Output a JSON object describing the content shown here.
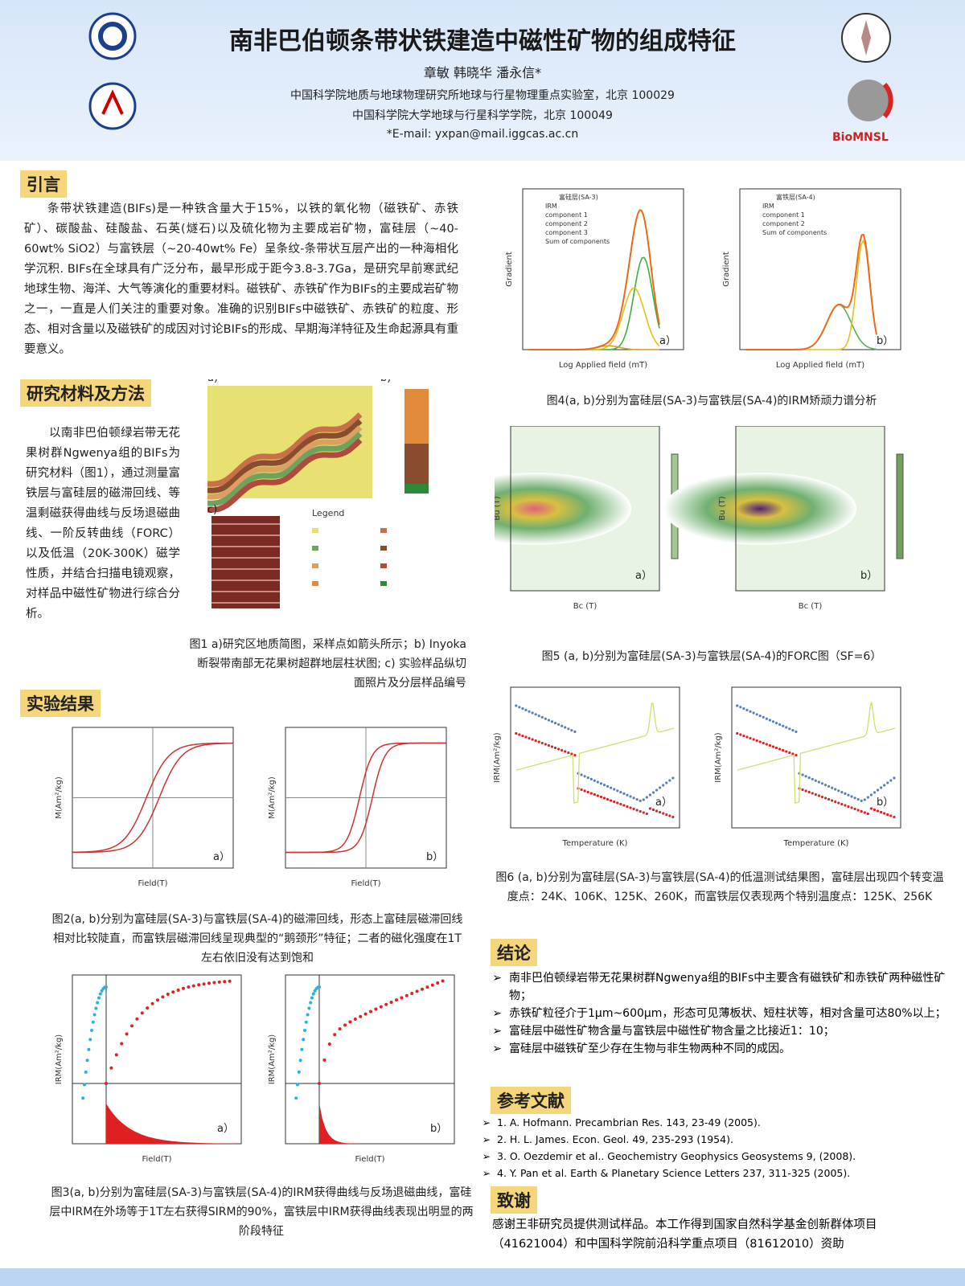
{
  "header": {
    "title": "南非巴伯顿条带状铁建造中磁性矿物的组成特征",
    "authors": "章敏  韩晓华  潘永信*",
    "affiliations": [
      "中国科学院地质与地球物理研究所地球与行星物理重点实验室，北京 100029",
      "中国科学院大学地球与行星科学学院，北京 100049"
    ],
    "email": "*E-mail: yxpan@mail.iggcas.ac.cn",
    "logo_text": "BioMNSL"
  },
  "intro": {
    "heading": "引言",
    "body": "条带状铁建造(BIFs)是一种铁含量大于15%，以铁的氧化物（磁铁矿、赤铁矿）、碳酸盐、硅酸盐、石英(燧石)以及硫化物为主要成岩矿物，富硅层（~40-60wt% SiO2）与富铁层（~20-40wt% Fe）呈条纹-条带状互层产出的一种海相化学沉积. BIFs在全球具有广泛分布，最早形成于距今3.8-3.7Ga，是研究早前寒武纪地球生物、海洋、大气等演化的重要材料。磁铁矿、赤铁矿作为BIFs的主要成岩矿物之一，一直是人们关注的重要对象。准确的识别BIFs中磁铁矿、赤铁矿的粒度、形态、相对含量以及磁铁矿的成因对讨论BIFs的形成、早期海洋特征及生命起源具有重要意义。"
  },
  "methods": {
    "heading": "研究材料及方法",
    "body": "以南非巴伯顿绿岩带无花果树群Ngwenya组的BIFs为研究材料（图1），通过测量富铁层与富硅层的磁滞回线、等温剩磁获得曲线与反场退磁曲线、一阶反转曲线（FORC）以及低温（20K-300K）磁学性质，并结合扫描电镜观察，对样品中磁性矿物进行综合分析。",
    "figure_caption": "图1 a)研究区地质简图，采样点如箭头所示；b) Inyoka断裂带南部无花果树超群地层柱状图; c) 实验样品纵切面照片及分层样品编号",
    "figure_labels": [
      "a)",
      "b)",
      "c)",
      "Legend"
    ]
  },
  "results": {
    "heading": "实验结果",
    "fig2": {
      "panels": [
        "a）",
        "b）"
      ],
      "x_label": "Field(T)",
      "y_label": "M(Am²/kg)",
      "caption": "图2(a, b)分别为富硅层(SA-3)与富铁层(SA-4)的磁滞回线，形态上富硅层磁滞回线相对比较陡直，而富铁层磁滞回线呈现典型的“鹅颈形”特征；二者的磁化强度在1T左右依旧没有达到饱和"
    },
    "fig3": {
      "panels": [
        "a）",
        "b）"
      ],
      "x_label": "Field(T)",
      "y_label": "IRM(Am²/kg)",
      "caption": "图3(a, b)分别为富硅层(SA-3)与富铁层(SA-4)的IRM获得曲线与反场退磁曲线，富硅层中IRM在外场等于1T左右获得SIRM的90%，富铁层中IRM获得曲线表现出明显的两阶段特征"
    }
  },
  "figures_right": {
    "fig4": {
      "panels": [
        "a）",
        "b）"
      ],
      "x_label": "Log Applied field (mT)",
      "y_label": "Gradient",
      "legend_a": [
        "富硅层(SA-3)",
        "IRM",
        "component 1",
        "component 2",
        "component 3",
        "Sum of components"
      ],
      "legend_b": [
        "富铁层(SA-4)",
        "IRM",
        "component 1",
        "component 2",
        "Sum of components"
      ],
      "caption": "图4(a, b)分别为富硅层(SA-3)与富铁层(SA-4)的IRM矫顽力谱分析"
    },
    "fig5": {
      "panels": [
        "a）",
        "b）"
      ],
      "x_label": "Bc (T)",
      "y_label": "Bu (T)",
      "caption": "图5 (a, b)分别为富硅层(SA-3)与富铁层(SA-4)的FORC图（SF=6）"
    },
    "fig6": {
      "panels": [
        "a）",
        "b）"
      ],
      "x_label": "Temperature (K)",
      "y_label": "IRM(Am²/kg)",
      "caption": "图6 (a, b)分别为富硅层(SA-3)与富铁层(SA-4)的低温测试结果图，富硅层出现四个转变温度点：24K、106K、125K、260K，而富铁层仅表现两个特别温度点：125K、256K"
    }
  },
  "conclusion": {
    "heading": "结论",
    "items": [
      "南非巴伯顿绿岩带无花果树群Ngwenya组的BIFs中主要含有磁铁矿和赤铁矿两种磁性矿物；",
      "赤铁矿粒径介于1μm~600μm，形态可见薄板状、短柱状等，相对含量可达80%以上；",
      "富硅层中磁性矿物含量与富铁层中磁性矿物含量之比接近1：10；",
      "富硅层中磁铁矿至少存在生物与非生物两种不同的成因。"
    ]
  },
  "references": {
    "heading": "参考文献",
    "items": [
      "1.    A. Hofmann. Precambrian Res. 143, 23-49 (2005).",
      "2.    H. L. James. Econ. Geol. 49, 235-293 (1954).",
      "3.    O. Oezdemir et al.. Geochemistry Geophysics Geosystems 9, (2008).",
      "4.    Y. Pan et al. Earth & Planetary Science Letters 237, 311-325 (2005)."
    ]
  },
  "acknowledgement": {
    "heading": "致谢",
    "body": "感谢王非研究员提供测试样品。本工作得到国家自然科学基金创新群体项目（41621004）和中国科学院前沿科学重点项目（81612010）资助"
  }
}
